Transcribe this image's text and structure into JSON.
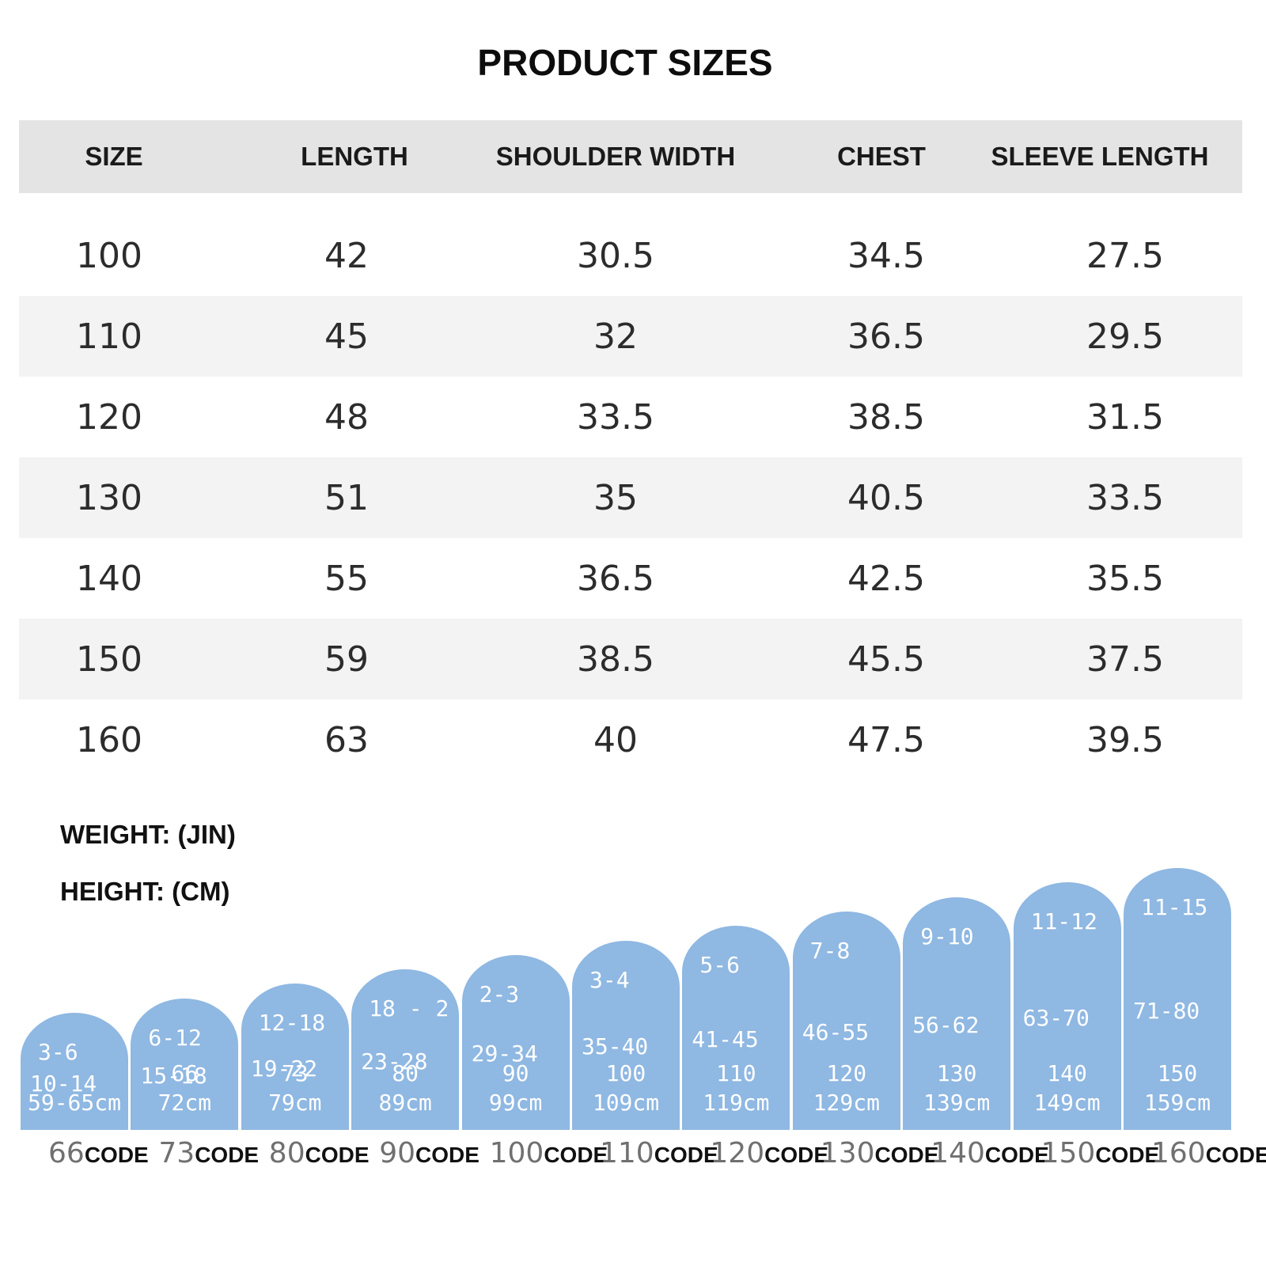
{
  "title": "PRODUCT SIZES",
  "table": {
    "headers": [
      "SIZE",
      "LENGTH",
      "SHOULDER WIDTH",
      "CHEST",
      "SLEEVE LENGTH"
    ],
    "rows": [
      [
        "100",
        "42",
        "30.5",
        "34.5",
        "27.5"
      ],
      [
        "110",
        "45",
        "32",
        "36.5",
        "29.5"
      ],
      [
        "120",
        "48",
        "33.5",
        "38.5",
        "31.5"
      ],
      [
        "130",
        "51",
        "35",
        "40.5",
        "33.5"
      ],
      [
        "140",
        "55",
        "36.5",
        "42.5",
        "35.5"
      ],
      [
        "150",
        "59",
        "38.5",
        "45.5",
        "37.5"
      ],
      [
        "160",
        "63",
        "40",
        "47.5",
        "39.5"
      ]
    ]
  },
  "legend": {
    "weight": "WEIGHT: (JIN)",
    "height": "HEIGHT: (CM)"
  },
  "size_chart": {
    "color": "#8fb8e2",
    "bars": [
      {
        "age": "3-6",
        "weight": "10-14",
        "height_min": "",
        "height_range": "59-65cm",
        "code_num": "66",
        "code_word": "CODE"
      },
      {
        "age": "6-12",
        "weight": "15-18",
        "height_min": "66",
        "height_range": "72cm",
        "code_num": "73",
        "code_word": "CODE"
      },
      {
        "age": "12-18",
        "weight": "19-22",
        "height_min": "73",
        "height_range": "79cm",
        "code_num": "80",
        "code_word": "CODE"
      },
      {
        "age": "18 - 2",
        "weight": "23-28",
        "height_min": "80",
        "height_range": "89cm",
        "code_num": "90",
        "code_word": "CODE"
      },
      {
        "age": "2-3",
        "weight": "29-34",
        "height_min": "90",
        "height_range": "99cm",
        "code_num": "100",
        "code_word": "CODE"
      },
      {
        "age": "3-4",
        "weight": "35-40",
        "height_min": "100",
        "height_range": "109cm",
        "code_num": "110",
        "code_word": "CODE"
      },
      {
        "age": "5-6",
        "weight": "41-45",
        "height_min": "110",
        "height_range": "119cm",
        "code_num": "120",
        "code_word": "CODE"
      },
      {
        "age": "7-8",
        "weight": "46-55",
        "height_min": "120",
        "height_range": "129cm",
        "code_num": "130",
        "code_word": "CODE"
      },
      {
        "age": "9-10",
        "weight": "56-62",
        "height_min": "130",
        "height_range": "139cm",
        "code_num": "140",
        "code_word": "CODE"
      },
      {
        "age": "11-12",
        "weight": "63-70",
        "height_min": "140",
        "height_range": "149cm",
        "code_num": "150",
        "code_word": "CODE"
      },
      {
        "age": "11-15",
        "weight": "71-80",
        "height_min": "150",
        "height_range": "159cm",
        "code_num": "160",
        "code_word": "CODE"
      }
    ]
  }
}
